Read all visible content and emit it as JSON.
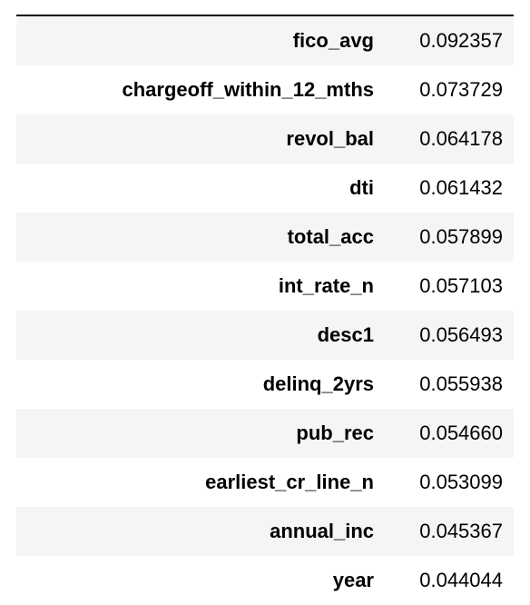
{
  "table": {
    "rows": [
      {
        "label": "fico_avg",
        "value": "0.092357"
      },
      {
        "label": "chargeoff_within_12_mths",
        "value": "0.073729"
      },
      {
        "label": "revol_bal",
        "value": "0.064178"
      },
      {
        "label": "dti",
        "value": "0.061432"
      },
      {
        "label": "total_acc",
        "value": "0.057899"
      },
      {
        "label": "int_rate_n",
        "value": "0.057103"
      },
      {
        "label": "desc1",
        "value": "0.056493"
      },
      {
        "label": "delinq_2yrs",
        "value": "0.055938"
      },
      {
        "label": "pub_rec",
        "value": "0.054660"
      },
      {
        "label": "earliest_cr_line_n",
        "value": "0.053099"
      },
      {
        "label": "annual_inc",
        "value": "0.045367"
      },
      {
        "label": "year",
        "value": "0.044044"
      }
    ]
  },
  "colors": {
    "stripe": "#f5f5f5",
    "rule": "#000000"
  }
}
